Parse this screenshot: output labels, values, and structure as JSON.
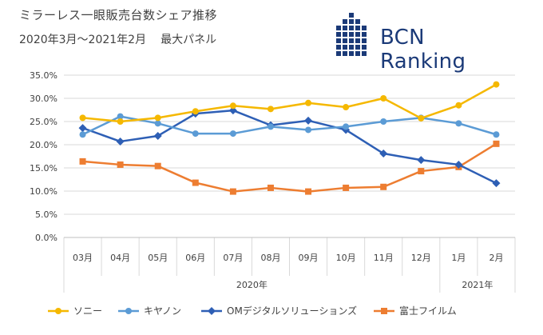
{
  "title": {
    "line1": "ミラーレス一眼販売台数シェア推移",
    "line2_a": "2020年3月〜2021年2月",
    "line2_b": "最大パネル"
  },
  "logo": {
    "text": "BCN Ranking",
    "color": "#1b3a78",
    "icon": "bcn-grid-icon"
  },
  "chart_data": {
    "type": "line",
    "categories": [
      "03月",
      "04月",
      "05月",
      "06月",
      "07月",
      "08月",
      "09月",
      "10月",
      "11月",
      "12月",
      "1月",
      "2月"
    ],
    "year_groups": [
      {
        "label": "2020年",
        "span": 10
      },
      {
        "label": "2021年",
        "span": 2
      }
    ],
    "y_ticks": [
      "0.0%",
      "5.0%",
      "10.0%",
      "15.0%",
      "20.0%",
      "25.0%",
      "30.0%",
      "35.0%"
    ],
    "ylim": [
      0,
      35
    ],
    "grid": true,
    "legend_position": "bottom",
    "series": [
      {
        "name": "ソニー",
        "color": "#f5b800",
        "marker": "circle",
        "values": [
          25.8,
          25.0,
          25.8,
          27.2,
          28.4,
          27.7,
          29.0,
          28.1,
          30.0,
          25.7,
          28.5,
          33.0
        ]
      },
      {
        "name": "キヤノン",
        "color": "#5b9bd5",
        "marker": "circle",
        "values": [
          22.2,
          26.1,
          24.6,
          22.4,
          22.4,
          23.9,
          23.2,
          23.9,
          25.0,
          25.8,
          24.6,
          22.2
        ]
      },
      {
        "name": "OMデジタルソリューションズ",
        "color": "#2e5fb5",
        "marker": "diamond",
        "values": [
          23.6,
          20.7,
          21.9,
          26.7,
          27.4,
          24.2,
          25.2,
          23.2,
          18.1,
          16.7,
          15.7,
          11.7
        ]
      },
      {
        "name": "富士フイルム",
        "color": "#ed7d31",
        "marker": "square",
        "values": [
          16.4,
          15.7,
          15.4,
          11.8,
          9.9,
          10.7,
          9.9,
          10.7,
          10.9,
          14.3,
          15.2,
          20.2
        ]
      }
    ]
  }
}
